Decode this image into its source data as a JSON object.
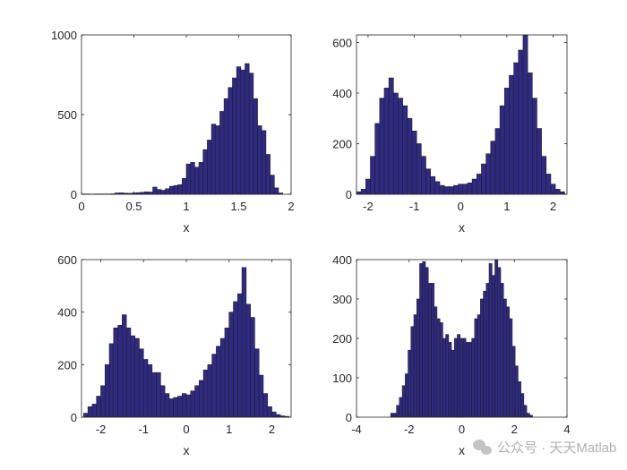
{
  "chart_data": [
    {
      "type": "bar",
      "title": "",
      "xlabel": "x",
      "ylabel": "",
      "xlim": [
        0,
        2
      ],
      "ylim": [
        0,
        1000
      ],
      "xticks": [
        "0",
        "0.5",
        "1",
        "1.5",
        "2"
      ],
      "yticks": [
        "0",
        "500",
        "1000"
      ],
      "bin_start": 0,
      "bin_width": 0.04,
      "values": [
        2,
        2,
        1,
        2,
        2,
        2,
        2,
        3,
        8,
        9,
        7,
        6,
        8,
        10,
        12,
        15,
        14,
        45,
        30,
        25,
        35,
        50,
        55,
        60,
        100,
        190,
        200,
        170,
        200,
        280,
        340,
        440,
        430,
        520,
        600,
        670,
        730,
        800,
        780,
        820,
        760,
        600,
        430,
        400,
        250,
        120,
        40,
        8
      ]
    },
    {
      "type": "bar",
      "xlabel": "x",
      "xlim": [
        -2.25,
        2.3
      ],
      "ylim": [
        0,
        630
      ],
      "xticks": [
        "-2",
        "-1",
        "0",
        "1",
        "2"
      ],
      "yticks": [
        "0",
        "200",
        "400",
        "600"
      ],
      "bin_start": -2.25,
      "bin_width": 0.1,
      "values": [
        10,
        20,
        60,
        150,
        280,
        380,
        420,
        460,
        400,
        380,
        350,
        300,
        250,
        200,
        150,
        100,
        70,
        50,
        35,
        30,
        30,
        35,
        40,
        40,
        45,
        60,
        80,
        120,
        160,
        210,
        260,
        350,
        420,
        470,
        520,
        570,
        630,
        480,
        380,
        260,
        150,
        80,
        40,
        20,
        10
      ]
    },
    {
      "type": "bar",
      "xlabel": "x",
      "xlim": [
        -2.45,
        2.45
      ],
      "ylim": [
        0,
        600
      ],
      "xticks": [
        "-2",
        "-1",
        "0",
        "1",
        "2"
      ],
      "yticks": [
        "0",
        "200",
        "400",
        "600"
      ],
      "bin_start": -2.4,
      "bin_width": 0.1,
      "values": [
        15,
        40,
        50,
        80,
        120,
        200,
        280,
        340,
        350,
        390,
        340,
        310,
        300,
        260,
        220,
        200,
        170,
        170,
        120,
        90,
        70,
        75,
        80,
        90,
        85,
        100,
        120,
        140,
        180,
        200,
        240,
        270,
        300,
        340,
        400,
        440,
        470,
        570,
        430,
        380,
        260,
        160,
        90,
        40,
        20,
        10,
        5,
        3
      ]
    },
    {
      "type": "bar",
      "xlabel": "x",
      "xlim": [
        -4,
        4
      ],
      "ylim": [
        0,
        400
      ],
      "xticks": [
        "-4",
        "-2",
        "0",
        "2",
        "4"
      ],
      "yticks": [
        "0",
        "100",
        "200",
        "300",
        "400"
      ],
      "bin_start": -2.7,
      "bin_width": 0.11,
      "values": [
        10,
        10,
        30,
        50,
        80,
        110,
        170,
        230,
        260,
        300,
        390,
        395,
        380,
        340,
        340,
        280,
        250,
        240,
        200,
        210,
        190,
        170,
        200,
        210,
        200,
        200,
        190,
        190,
        200,
        250,
        260,
        300,
        320,
        340,
        390,
        360,
        400,
        380,
        340,
        300,
        280,
        250,
        180,
        130,
        90,
        60,
        30,
        10,
        5
      ]
    }
  ],
  "colors": {
    "bar_fill": "#2f2a82",
    "bar_edge": "#1e1e2a",
    "axis": "#262626"
  },
  "watermark": "公众号 · 天天Matlab"
}
